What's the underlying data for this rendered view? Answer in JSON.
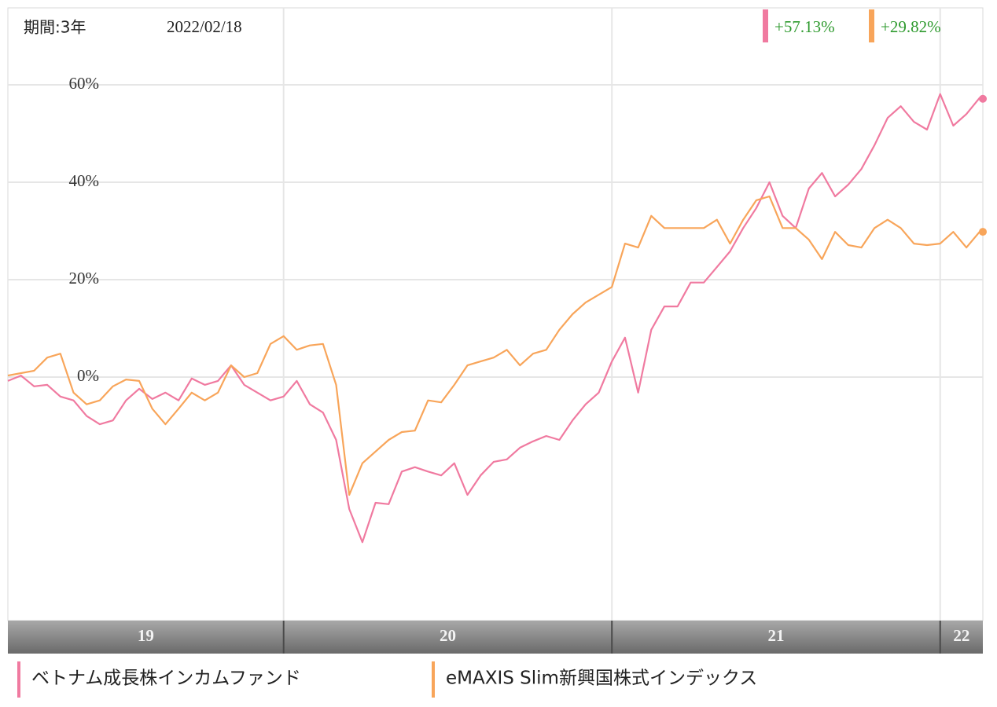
{
  "chart_data": {
    "type": "line",
    "period_label": "期間:3年",
    "date": "2022/02/18",
    "x": [
      2019.16,
      2019.2,
      2019.24,
      2019.28,
      2019.32,
      2019.36,
      2019.4,
      2019.44,
      2019.48,
      2019.52,
      2019.56,
      2019.6,
      2019.64,
      2019.68,
      2019.72,
      2019.76,
      2019.8,
      2019.84,
      2019.88,
      2019.92,
      2019.96,
      2020,
      2020.04,
      2020.08,
      2020.12,
      2020.16,
      2020.2,
      2020.24,
      2020.28,
      2020.32,
      2020.36,
      2020.4,
      2020.44,
      2020.48,
      2020.52,
      2020.56,
      2020.6,
      2020.64,
      2020.68,
      2020.72,
      2020.76,
      2020.8,
      2020.84,
      2020.88,
      2020.92,
      2020.96,
      2021,
      2021.04,
      2021.08,
      2021.12,
      2021.16,
      2021.2,
      2021.24,
      2021.28,
      2021.32,
      2021.36,
      2021.4,
      2021.44,
      2021.48,
      2021.52,
      2021.56,
      2021.6,
      2021.64,
      2021.68,
      2021.72,
      2021.76,
      2021.8,
      2021.84,
      2021.88,
      2021.92,
      2021.96,
      2022,
      2022.04,
      2022.08,
      2022.12,
      2022.13
    ],
    "xlim": [
      2019.16,
      2022.13
    ],
    "xticks": [
      2020,
      2021,
      2022
    ],
    "x_labels": [
      "19",
      "20",
      "21",
      "22"
    ],
    "ylim": [
      -50,
      75.8
    ],
    "yticks": [
      {
        "value": 0,
        "label": "0%"
      },
      {
        "value": 20,
        "label": "20%"
      },
      {
        "value": 40,
        "label": "40%"
      },
      {
        "value": 60,
        "label": "60%"
      }
    ],
    "grid": true,
    "series": [
      {
        "name": "ベトナム成長株インカムファンド",
        "color": "#f07aa0",
        "end_label": "+57.13%",
        "values": [
          -0.8,
          0.3,
          -1.9,
          -1.6,
          -4,
          -4.8,
          -8,
          -9.7,
          -8.9,
          -4.8,
          -2.4,
          -4.5,
          -3.2,
          -4.8,
          -0.3,
          -1.6,
          -0.8,
          2.4,
          -1.6,
          -3.2,
          -4.8,
          -4,
          -0.8,
          -5.6,
          -7.3,
          -12.9,
          -27.1,
          -33.9,
          -25.8,
          -26.1,
          -19.4,
          -18.5,
          -19.4,
          -20.2,
          -17.7,
          -24.2,
          -20.2,
          -17.4,
          -16.9,
          -14.5,
          -13.2,
          -12.1,
          -12.9,
          -8.9,
          -5.6,
          -3.2,
          3.2,
          8.1,
          -3.2,
          9.7,
          14.5,
          14.5,
          19.4,
          19.4,
          22.6,
          25.8,
          30.6,
          34.7,
          40,
          33.1,
          30.6,
          38.7,
          41.9,
          37.1,
          39.5,
          42.7,
          47.6,
          53.2,
          55.6,
          52.4,
          50.8,
          58.1,
          51.6,
          54,
          57.3,
          57.13
        ]
      },
      {
        "name": "eMAXIS Slim新興国株式インデックス",
        "color": "#f8a55a",
        "end_label": "+29.82%",
        "values": [
          0.3,
          0.8,
          1.3,
          4,
          4.8,
          -3.2,
          -5.6,
          -4.8,
          -1.9,
          -0.5,
          -0.8,
          -6.5,
          -9.7,
          -6.5,
          -3.2,
          -4.8,
          -3.2,
          2.4,
          0,
          0.8,
          6.8,
          8.4,
          5.6,
          6.5,
          6.8,
          -1.6,
          -24.2,
          -17.7,
          -15.3,
          -12.9,
          -11.3,
          -11,
          -4.8,
          -5.2,
          -1.6,
          2.4,
          3.2,
          4,
          5.6,
          2.4,
          4.8,
          5.6,
          9.7,
          12.9,
          15.3,
          16.9,
          18.5,
          27.4,
          26.6,
          33.1,
          30.6,
          30.6,
          30.6,
          30.6,
          32.3,
          27.4,
          32.3,
          36.3,
          37.1,
          30.6,
          30.6,
          28.2,
          24.2,
          29.8,
          27.1,
          26.6,
          30.6,
          32.3,
          30.6,
          27.4,
          27.1,
          27.4,
          29.8,
          26.6,
          29.8,
          29.82
        ]
      }
    ]
  }
}
